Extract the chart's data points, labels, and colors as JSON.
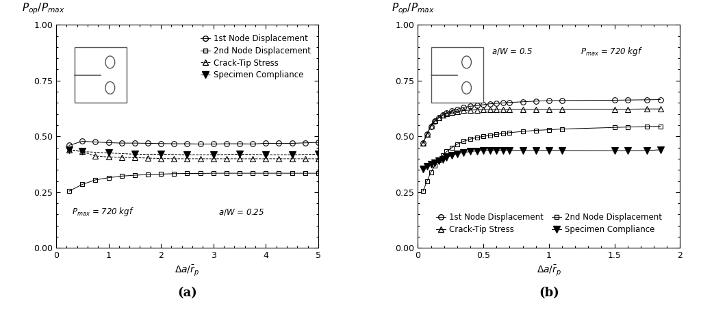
{
  "panel_a": {
    "xlabel": "$\\Delta a/\\bar{r}_p$",
    "xlim": [
      0,
      5
    ],
    "ylim": [
      0,
      1.0
    ],
    "xticks": [
      0,
      1,
      2,
      3,
      4,
      5
    ],
    "yticks": [
      0,
      0.25,
      0.5,
      0.75,
      1.0
    ],
    "label_pmax": "$P_{max}$ = 720 kgf",
    "label_aw": "$a/W$ = 0.25",
    "series": {
      "node1": {
        "x": [
          0.25,
          0.5,
          0.75,
          1.0,
          1.25,
          1.5,
          1.75,
          2.0,
          2.25,
          2.5,
          2.75,
          3.0,
          3.25,
          3.5,
          3.75,
          4.0,
          4.25,
          4.5,
          4.75,
          5.0
        ],
        "y": [
          0.46,
          0.478,
          0.475,
          0.472,
          0.47,
          0.47,
          0.469,
          0.468,
          0.467,
          0.467,
          0.466,
          0.466,
          0.467,
          0.467,
          0.466,
          0.469,
          0.469,
          0.469,
          0.471,
          0.473
        ],
        "marker": "o",
        "markersize": 5.5,
        "linestyle": "-",
        "fillstyle": "none"
      },
      "node2": {
        "x": [
          0.25,
          0.5,
          0.75,
          1.0,
          1.25,
          1.5,
          1.75,
          2.0,
          2.25,
          2.5,
          2.75,
          3.0,
          3.25,
          3.5,
          3.75,
          4.0,
          4.25,
          4.5,
          4.75,
          5.0
        ],
        "y": [
          0.255,
          0.285,
          0.305,
          0.315,
          0.322,
          0.326,
          0.329,
          0.331,
          0.333,
          0.334,
          0.334,
          0.335,
          0.335,
          0.335,
          0.335,
          0.335,
          0.335,
          0.335,
          0.335,
          0.335
        ],
        "marker": "s",
        "markersize": 4.5,
        "linestyle": "-",
        "fillstyle": "none"
      },
      "crack_tip": {
        "x": [
          0.25,
          0.5,
          0.75,
          1.0,
          1.25,
          1.5,
          1.75,
          2.0,
          2.25,
          2.5,
          2.75,
          3.0,
          3.25,
          3.5,
          3.75,
          4.0,
          4.25,
          4.5,
          4.75,
          5.0
        ],
        "y": [
          0.44,
          0.432,
          0.412,
          0.408,
          0.406,
          0.405,
          0.403,
          0.401,
          0.4,
          0.4,
          0.4,
          0.4,
          0.4,
          0.4,
          0.4,
          0.4,
          0.4,
          0.4,
          0.4,
          0.4
        ],
        "marker": "^",
        "markersize": 5.5,
        "linestyle": "--",
        "fillstyle": "none"
      },
      "compliance": {
        "x": [
          0.25,
          0.5,
          1.0,
          1.5,
          2.0,
          2.5,
          3.0,
          3.5,
          4.0,
          4.5,
          5.0
        ],
        "y": [
          0.44,
          0.432,
          0.426,
          0.42,
          0.42,
          0.418,
          0.418,
          0.42,
          0.418,
          0.418,
          0.42
        ],
        "marker": "v",
        "markersize": 6.5,
        "linestyle": "--",
        "fillstyle": "full"
      }
    }
  },
  "panel_b": {
    "xlabel": "$\\Delta a/\\bar{r}_p$",
    "xlim": [
      0,
      2.0
    ],
    "ylim": [
      0,
      1.0
    ],
    "xticks": [
      0,
      0.5,
      1.0,
      1.5,
      2.0
    ],
    "yticks": [
      0,
      0.25,
      0.5,
      0.75,
      1.0
    ],
    "label_pmax": "$P_{max}$ = 720 kgf",
    "label_aw": "$a/W$ = 0.5",
    "series": {
      "node1": {
        "x": [
          0.04,
          0.07,
          0.1,
          0.13,
          0.16,
          0.19,
          0.22,
          0.26,
          0.3,
          0.35,
          0.4,
          0.45,
          0.5,
          0.55,
          0.6,
          0.65,
          0.7,
          0.8,
          0.9,
          1.0,
          1.1,
          1.5,
          1.6,
          1.75,
          1.85
        ],
        "y": [
          0.47,
          0.51,
          0.545,
          0.567,
          0.583,
          0.595,
          0.605,
          0.615,
          0.622,
          0.63,
          0.635,
          0.638,
          0.642,
          0.646,
          0.648,
          0.65,
          0.652,
          0.655,
          0.658,
          0.66,
          0.661,
          0.662,
          0.663,
          0.664,
          0.665
        ],
        "marker": "o",
        "markersize": 5.5,
        "linestyle": "-",
        "fillstyle": "none"
      },
      "node2": {
        "x": [
          0.04,
          0.07,
          0.1,
          0.13,
          0.16,
          0.19,
          0.22,
          0.26,
          0.3,
          0.35,
          0.4,
          0.45,
          0.5,
          0.55,
          0.6,
          0.65,
          0.7,
          0.8,
          0.9,
          1.0,
          1.1,
          1.5,
          1.6,
          1.75,
          1.85
        ],
        "y": [
          0.255,
          0.3,
          0.34,
          0.37,
          0.395,
          0.415,
          0.432,
          0.45,
          0.465,
          0.478,
          0.488,
          0.495,
          0.5,
          0.505,
          0.509,
          0.513,
          0.517,
          0.522,
          0.527,
          0.53,
          0.533,
          0.54,
          0.542,
          0.544,
          0.545
        ],
        "marker": "s",
        "markersize": 4.5,
        "linestyle": "-",
        "fillstyle": "none"
      },
      "crack_tip": {
        "x": [
          0.04,
          0.07,
          0.1,
          0.13,
          0.16,
          0.19,
          0.22,
          0.26,
          0.3,
          0.35,
          0.4,
          0.45,
          0.5,
          0.55,
          0.6,
          0.65,
          0.7,
          0.8,
          0.9,
          1.0,
          1.1,
          1.5,
          1.6,
          1.75,
          1.85
        ],
        "y": [
          0.47,
          0.51,
          0.548,
          0.57,
          0.585,
          0.595,
          0.602,
          0.608,
          0.612,
          0.616,
          0.618,
          0.619,
          0.62,
          0.621,
          0.621,
          0.622,
          0.622,
          0.622,
          0.622,
          0.622,
          0.622,
          0.622,
          0.622,
          0.623,
          0.623
        ],
        "marker": "^",
        "markersize": 5.5,
        "linestyle": "-",
        "fillstyle": "none"
      },
      "compliance": {
        "x": [
          0.04,
          0.07,
          0.1,
          0.13,
          0.16,
          0.19,
          0.22,
          0.26,
          0.3,
          0.35,
          0.4,
          0.45,
          0.5,
          0.55,
          0.6,
          0.65,
          0.7,
          0.8,
          0.9,
          1.0,
          1.1,
          1.5,
          1.6,
          1.75,
          1.85
        ],
        "y": [
          0.355,
          0.365,
          0.375,
          0.382,
          0.39,
          0.398,
          0.406,
          0.415,
          0.422,
          0.428,
          0.432,
          0.435,
          0.437,
          0.438,
          0.438,
          0.438,
          0.438,
          0.437,
          0.437,
          0.437,
          0.437,
          0.436,
          0.436,
          0.437,
          0.44
        ],
        "marker": "v",
        "markersize": 6.5,
        "linestyle": "-",
        "fillstyle": "full"
      }
    }
  },
  "ytitle": "$P_{op}/P_{max}$",
  "legend_a": [
    "1st Node Displacement",
    "2nd Node Displacement",
    "Crack-Tip Stress",
    "Specimen Compliance"
  ],
  "legend_b_col1": [
    "1st Node Displacement",
    "2nd Node Displacement"
  ],
  "legend_b_col2": [
    "Crack-Tip Stress",
    "Specimen Compliance"
  ],
  "label_a": "(a)",
  "label_b": "(b)"
}
